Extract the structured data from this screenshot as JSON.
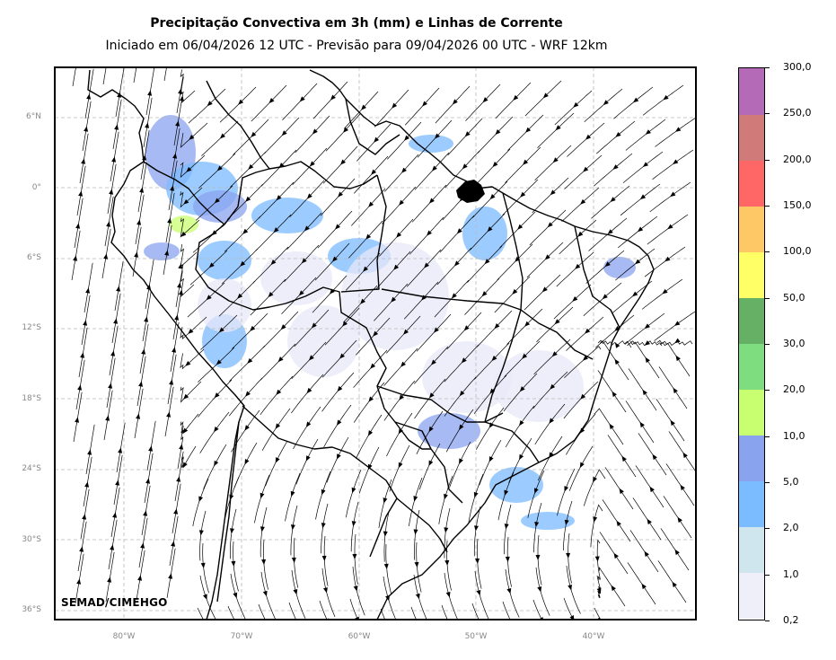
{
  "title": "Precipitação Convectiva em 3h (mm) e Linhas de Corrente",
  "subtitle": "Iniciado em 06/04/2026 12 UTC - Previsão para 09/04/2026 00 UTC - WRF 12km",
  "credit": "SEMAD/CIMEHGO",
  "lat_ticks": [
    "6°N",
    "0°",
    "6°S",
    "12°S",
    "18°S",
    "24°S",
    "30°S",
    "36°S"
  ],
  "lon_ticks": [
    "80°W",
    "70°W",
    "60°W",
    "50°W",
    "40°W"
  ],
  "colorbar": {
    "labels": [
      "0,2",
      "1,0",
      "2,0",
      "5,0",
      "10,0",
      "20,0",
      "30,0",
      "50,0",
      "100,0",
      "150,0",
      "200,0",
      "250,0",
      "300,0"
    ],
    "colors": [
      "#efeffa",
      "#cfe6ee",
      "#7bbbff",
      "#8aa3ef",
      "#c8ff70",
      "#7edd7e",
      "#66b066",
      "#ffff66",
      "#ffc866",
      "#ff6666",
      "#d07a7a",
      "#b56ab8"
    ]
  },
  "colors": {
    "streamline": "#000000",
    "borders": "#000000",
    "grid": "#b8b8b8",
    "precip_light": "#e8e8f8",
    "precip_mid": "#7bbbff"
  }
}
